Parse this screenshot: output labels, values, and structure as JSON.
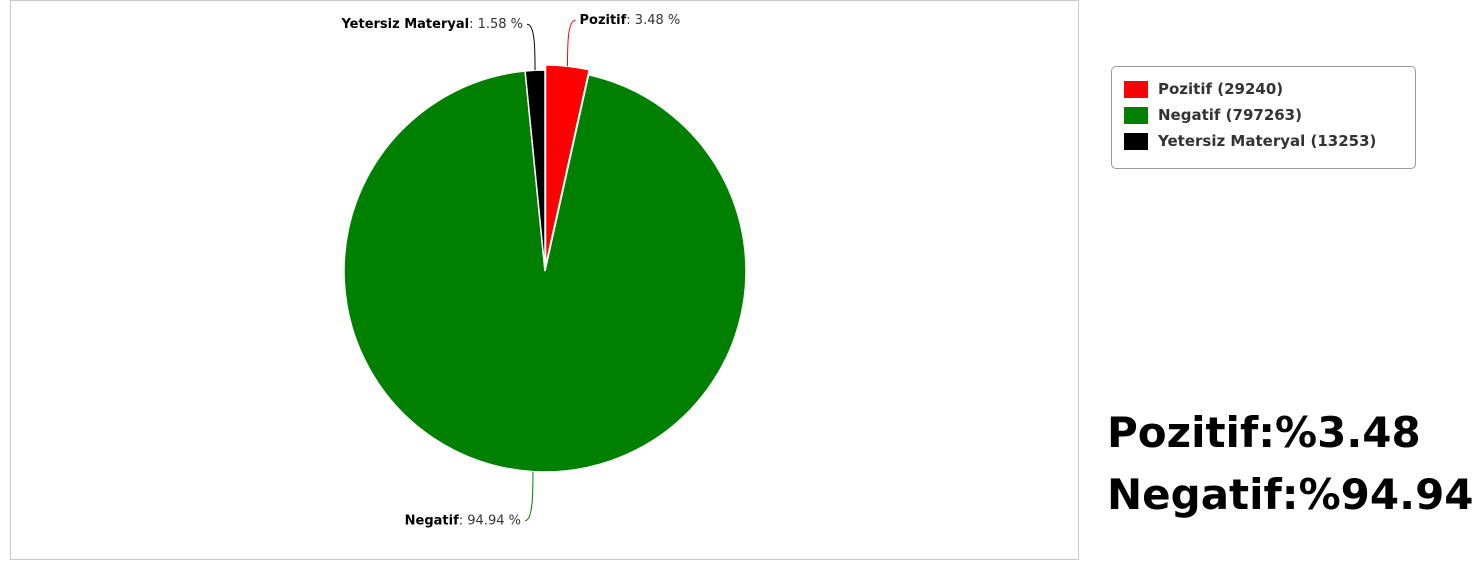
{
  "chart_data": {
    "type": "pie",
    "slices": [
      {
        "name": "Pozitif",
        "count": 29240,
        "percent": 3.48,
        "color": "#ff0000",
        "legend": "Pozitif (29240)",
        "label_value": "3.48 %",
        "exploded": true
      },
      {
        "name": "Negatif",
        "count": 797263,
        "percent": 94.94,
        "color": "#008000",
        "legend": "Negatif (797263)",
        "label_value": "94.94 %",
        "exploded": false
      },
      {
        "name": "Yetersiz Materyal",
        "count": 13253,
        "percent": 1.58,
        "color": "#000000",
        "legend": "Yetersiz Materyal (13253)",
        "label_value": "1.58 %",
        "exploded": false
      }
    ],
    "legend_position": "right-top"
  },
  "summary": {
    "line1": "Pozitif:%3.48",
    "line2": "Negatif:%94.94"
  }
}
